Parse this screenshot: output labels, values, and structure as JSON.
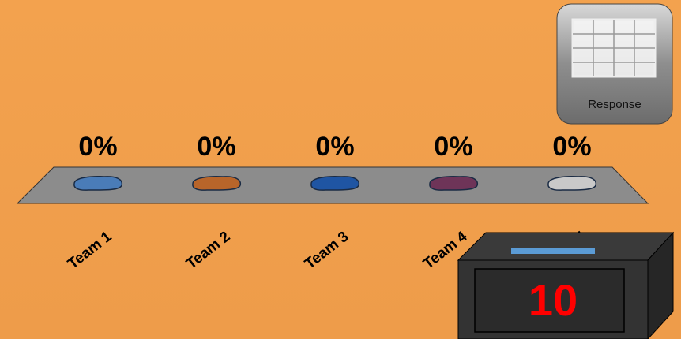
{
  "chart_data": {
    "type": "bar",
    "categories": [
      "Team 1",
      "Team 2",
      "Team 3",
      "Team 4",
      "Team 5"
    ],
    "values": [
      0,
      0,
      0,
      0,
      0
    ],
    "value_labels": [
      "0%",
      "0%",
      "0%",
      "0%",
      "0%"
    ],
    "colors": [
      "#4a7cb8",
      "#b8652a",
      "#1f55a3",
      "#6e3458",
      "#c9c9c9"
    ]
  },
  "response_button": {
    "label": "Response"
  },
  "countdown": {
    "value": 10
  }
}
